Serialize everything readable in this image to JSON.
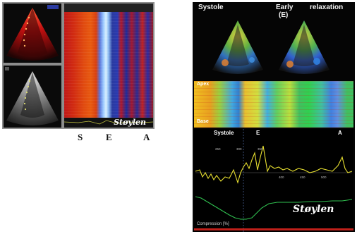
{
  "left_figure": {
    "signature": "Støylen",
    "phase_labels": {
      "s": "S",
      "e": "E",
      "a": "A"
    }
  },
  "right_figure": {
    "labels": {
      "systole": "Systole",
      "early_relaxation_line1": "Early",
      "early_relaxation_line2": "(E)",
      "relaxation": "relaxation"
    },
    "mmode_labels": {
      "apex": "Apex",
      "base": "Base"
    },
    "chart_labels": {
      "systole": "Systole",
      "e": "E",
      "a": "A",
      "compression": "Compression [%]"
    },
    "signature": "Støylen"
  }
}
